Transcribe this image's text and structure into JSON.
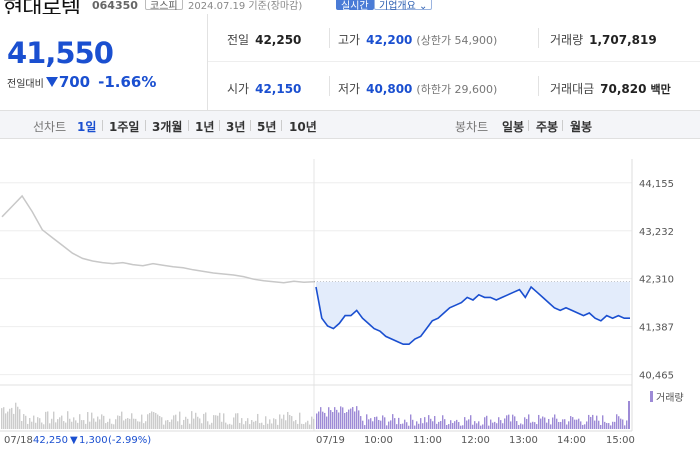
{
  "header": {
    "stock_name": "현대로템",
    "stock_code": "064350",
    "market": "코스피",
    "date_info": "2024.07.19 기준(장마감)",
    "realtime_label": "실시간",
    "company_info_label": "기업개요"
  },
  "price": {
    "current": "41,550",
    "change_label": "전일대비",
    "change": "700",
    "change_pct": "-1.66%"
  },
  "stats": {
    "prev_close_label": "전일",
    "prev_close": "42,250",
    "high_label": "고가",
    "high": "42,200",
    "upper_limit": "(상한가 54,900)",
    "volume_label": "거래량",
    "volume": "1,707,819",
    "open_label": "시가",
    "open": "42,150",
    "low_label": "저가",
    "low": "40,800",
    "lower_limit": "(하한가 29,600)",
    "amount_label": "거래대금",
    "amount": "70,820",
    "amount_unit": "백만"
  },
  "tabs": {
    "line_chart_label": "선차트",
    "periods": [
      "1일",
      "1주일",
      "3개월",
      "1년",
      "3년",
      "5년",
      "10년"
    ],
    "active": "1일",
    "candle_label": "봉차트",
    "candles": [
      "일봉",
      "주봉",
      "월봉"
    ]
  },
  "colors": {
    "accent": "#1a4fd0",
    "fill": "#e3ecfb",
    "prev_line": "#c8c8c8",
    "volume_prev": "#cccccc",
    "volume_today": "#9d8ad6"
  },
  "chart_data": {
    "type": "line",
    "y_ticks": [
      "44,155",
      "43,232",
      "42,310",
      "41,387",
      "40,465"
    ],
    "y_tick_values": [
      44155,
      43232,
      42310,
      41387,
      40465
    ],
    "ylim": [
      40380,
      44420
    ],
    "x_labels": [
      "07/18",
      "07/19",
      "10:00",
      "11:00",
      "12:00",
      "13:00",
      "14:00",
      "15:00"
    ],
    "prev_day_reference": 42250,
    "volume_label": "거래량",
    "prev_day_footer": {
      "date": "07/18",
      "close": "42,250",
      "change": "1,300",
      "change_pct": "(-2.99%)"
    },
    "prev_series": [
      43500,
      43700,
      43900,
      43600,
      43250,
      43100,
      42950,
      42800,
      42700,
      42650,
      42620,
      42600,
      42620,
      42580,
      42560,
      42600,
      42570,
      42540,
      42520,
      42480,
      42450,
      42420,
      42400,
      42380,
      42350,
      42300,
      42270,
      42250,
      42230,
      42260,
      42240,
      42250
    ],
    "today_series": [
      42150,
      41550,
      41400,
      41350,
      41450,
      41600,
      41600,
      41700,
      41550,
      41450,
      41350,
      41300,
      41200,
      41150,
      41100,
      41050,
      41050,
      41150,
      41200,
      41350,
      41500,
      41550,
      41650,
      41750,
      41800,
      41850,
      41950,
      41900,
      42000,
      41950,
      41950,
      41900,
      41950,
      42000,
      42050,
      42100,
      41950,
      42150,
      42050,
      41950,
      41850,
      41750,
      41700,
      41750,
      41700,
      41650,
      41600,
      41650,
      41550,
      41500,
      41600,
      41550,
      41600,
      41550,
      41550
    ]
  }
}
